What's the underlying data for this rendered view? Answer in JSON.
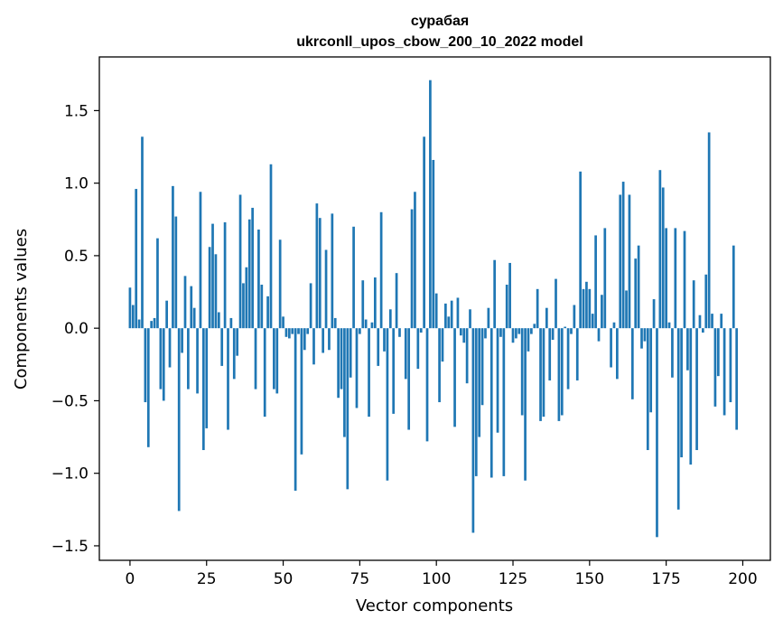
{
  "chart_data": {
    "type": "bar",
    "title": [
      "сурабая",
      "ukrconll_upos_cbow_200_10_2022 model"
    ],
    "xlabel": "Vector components",
    "ylabel": "Components values",
    "xlim": [
      -10,
      209
    ],
    "ylim": [
      -1.6,
      1.87
    ],
    "xticks": [
      0,
      25,
      50,
      75,
      100,
      125,
      150,
      175,
      200
    ],
    "xtick_labels": [
      "0",
      "25",
      "50",
      "75",
      "100",
      "125",
      "150",
      "175",
      "200"
    ],
    "yticks": [
      -1.5,
      -1.0,
      -0.5,
      0.0,
      0.5,
      1.0,
      1.5
    ],
    "ytick_labels": [
      "−1.5",
      "−1.0",
      "−0.5",
      "0.0",
      "0.5",
      "1.0",
      "1.5"
    ],
    "bar_color": "#1f77b4",
    "grid": false,
    "legend": "none",
    "values": [
      0.28,
      0.16,
      0.96,
      0.06,
      1.32,
      -0.51,
      -0.82,
      0.05,
      0.07,
      0.62,
      -0.42,
      -0.5,
      0.19,
      -0.27,
      0.98,
      0.77,
      -1.26,
      -0.17,
      0.36,
      -0.42,
      0.29,
      0.14,
      -0.45,
      0.94,
      -0.84,
      -0.69,
      0.56,
      0.72,
      0.51,
      0.11,
      -0.26,
      0.73,
      -0.7,
      0.07,
      -0.35,
      -0.19,
      0.92,
      0.31,
      0.42,
      0.75,
      0.83,
      -0.42,
      0.68,
      0.3,
      -0.61,
      0.22,
      1.13,
      -0.42,
      -0.45,
      0.61,
      0.08,
      -0.06,
      -0.07,
      -0.04,
      -1.12,
      -0.04,
      -0.87,
      -0.15,
      -0.04,
      0.31,
      -0.25,
      0.86,
      0.76,
      -0.17,
      0.54,
      -0.15,
      0.79,
      0.07,
      -0.48,
      -0.42,
      -0.75,
      -1.11,
      -0.34,
      0.7,
      -0.55,
      -0.04,
      0.33,
      0.06,
      -0.61,
      0.04,
      0.35,
      -0.26,
      0.8,
      -0.16,
      -1.05,
      0.13,
      -0.59,
      0.38,
      -0.06,
      0.0,
      -0.35,
      -0.7,
      0.82,
      0.94,
      -0.28,
      -0.03,
      1.32,
      -0.78,
      1.71,
      1.16,
      0.24,
      -0.51,
      -0.23,
      0.17,
      0.08,
      0.19,
      -0.68,
      0.21,
      -0.05,
      -0.1,
      -0.38,
      0.13,
      -1.41,
      -1.02,
      -0.75,
      -0.53,
      -0.07,
      0.14,
      -1.03,
      0.47,
      -0.72,
      -0.06,
      -1.02,
      0.3,
      0.45,
      -0.1,
      -0.07,
      -0.04,
      -0.6,
      -1.05,
      -0.16,
      -0.04,
      0.03,
      0.27,
      -0.64,
      -0.61,
      0.14,
      -0.36,
      -0.08,
      0.34,
      -0.64,
      -0.6,
      0.01,
      -0.42,
      -0.04,
      0.16,
      -0.36,
      1.08,
      0.27,
      0.32,
      0.27,
      0.1,
      0.64,
      -0.09,
      0.23,
      0.69,
      0.0,
      -0.27,
      0.04,
      -0.35,
      0.92,
      1.01,
      0.26,
      0.92,
      -0.49,
      0.48,
      0.57,
      -0.14,
      -0.09,
      -0.84,
      -0.58,
      0.2,
      -1.44,
      1.09,
      0.97,
      0.69,
      0.04,
      -0.34,
      0.69,
      -1.25,
      -0.89,
      0.67,
      -0.29,
      -0.94,
      0.33,
      -0.84,
      0.09,
      -0.03,
      0.37,
      1.35,
      0.1,
      -0.54,
      -0.33,
      0.1,
      -0.6,
      0.0,
      -0.51,
      0.57,
      -0.7
    ]
  }
}
